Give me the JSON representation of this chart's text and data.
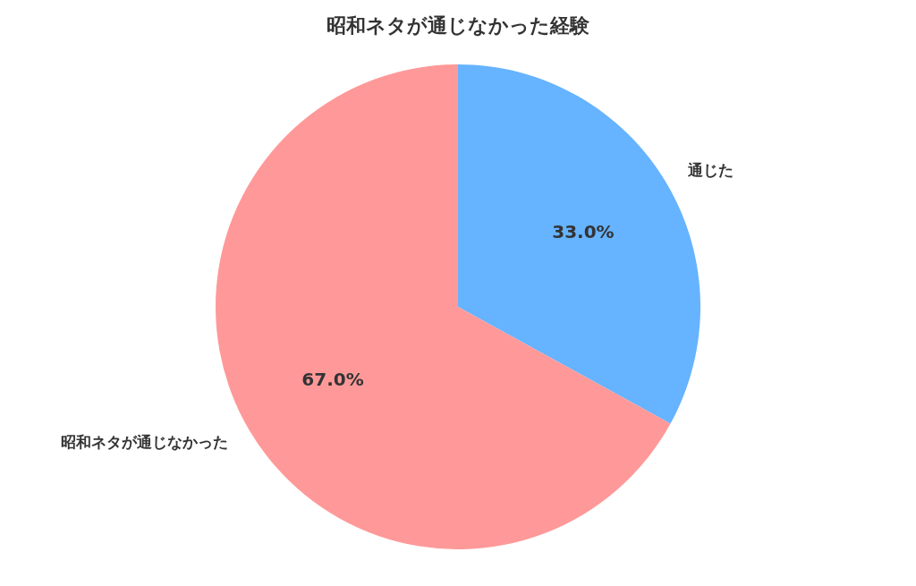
{
  "chart_data": {
    "type": "pie",
    "title": "昭和ネタが通じなかった経験",
    "categories": [
      "通じた",
      "昭和ネタが通じなかった"
    ],
    "values": [
      33.0,
      67.0
    ],
    "colors": [
      "#66b3ff",
      "#ff9999"
    ],
    "value_labels": [
      "33.0%",
      "67.0%"
    ]
  }
}
